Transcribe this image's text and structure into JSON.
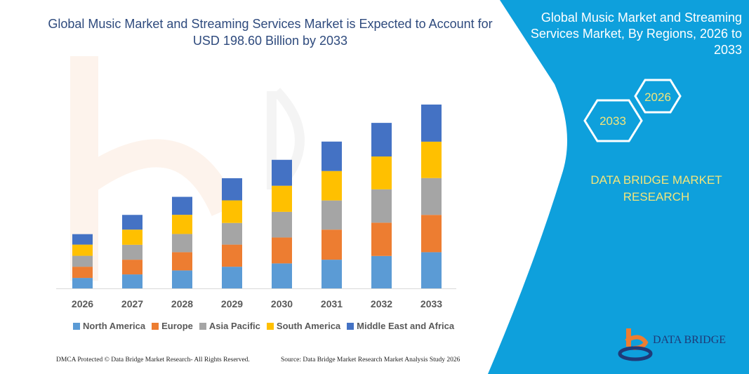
{
  "title": "Global Music Market and Streaming Services Market is Expected to Account for USD 198.60 Billion by 2033",
  "panel": {
    "title": "Global Music Market and Streaming Services Market, By Regions, 2026 to 2033",
    "hex_start": "2026",
    "hex_end": "2033",
    "brand": "DATA BRIDGE MARKET RESEARCH",
    "logo_text": "DATA BRIDGE",
    "logo_subtext": "MARKET RESEARCH",
    "color": "#0EA0DC"
  },
  "footer": {
    "left": "DMCA Protected © Data Bridge Market Research- All Rights Reserved.",
    "right": "Source: Data Bridge Market Research Market Analysis Study 2026"
  },
  "chart_data": {
    "type": "bar",
    "stacked": true,
    "title": "Global Music Market and Streaming Services Market is Expected to Account for USD 198.60 Billion by 2033",
    "categories": [
      "2026",
      "2027",
      "2028",
      "2029",
      "2030",
      "2031",
      "2032",
      "2033"
    ],
    "series": [
      {
        "name": "North America",
        "color": "#5B9BD5",
        "values": [
          11.3,
          15.1,
          19.4,
          23.4,
          27.0,
          31.0,
          35.0,
          39.1
        ]
      },
      {
        "name": "Europe",
        "color": "#ED7D31",
        "values": [
          12.1,
          15.9,
          19.7,
          23.9,
          28.0,
          32.5,
          36.0,
          40.3
        ]
      },
      {
        "name": "Asia Pacific",
        "color": "#A5A5A5",
        "values": [
          11.8,
          16.1,
          19.7,
          23.4,
          27.7,
          31.5,
          36.0,
          39.8
        ]
      },
      {
        "name": "South America",
        "color": "#FFC000",
        "values": [
          12.1,
          16.4,
          20.7,
          24.4,
          28.2,
          31.8,
          35.5,
          39.3
        ]
      },
      {
        "name": "Middle East and Africa",
        "color": "#4472C4",
        "values": [
          11.3,
          15.9,
          19.4,
          23.9,
          28.0,
          31.8,
          36.3,
          40.1
        ]
      }
    ],
    "ylim": [
      0,
      198.6
    ],
    "grid": false,
    "legend": "bottom",
    "unit": "USD Billion"
  }
}
